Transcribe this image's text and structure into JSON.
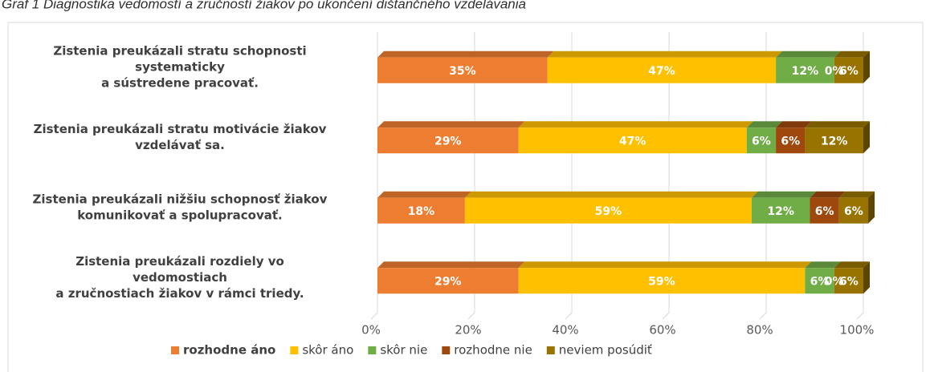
{
  "chart_data": {
    "type": "bar",
    "orientation": "horizontal",
    "stacked": true,
    "title": "Graf 1 Diagnostika vedomostí a zručností žiakov po ukončení dištančného vzdelávania",
    "categories": [
      [
        "Zistenia preukázali stratu schopnosti",
        "systematicky",
        "a sústredene pracovať."
      ],
      [
        "Zistenia  preukázali stratu motivácie žiakov",
        "vzdelávať sa."
      ],
      [
        "Zistenia preukázali nižšiu schopnosť žiakov",
        "komunikovať a spolupracovať."
      ],
      [
        "Zistenia  preukázali rozdiely vo",
        "vedomostiach",
        "a zručnostiach žiakov v rámci triedy."
      ]
    ],
    "series": [
      {
        "name": "rozhodne áno",
        "color": "#ED7D31",
        "values": [
          35,
          29,
          18,
          29
        ],
        "value_labels": [
          "35%",
          "29%",
          "18%",
          "29%"
        ]
      },
      {
        "name": "skôr áno",
        "color": "#FFC000",
        "values": [
          47,
          47,
          59,
          59
        ],
        "value_labels": [
          "47%",
          "47%",
          "59%",
          "59%"
        ]
      },
      {
        "name": "skôr nie",
        "color": "#70AD47",
        "values": [
          12,
          6,
          12,
          6
        ],
        "value_labels": [
          "12%",
          "6%",
          "12%",
          "6%"
        ]
      },
      {
        "name": "rozhodne nie",
        "color": "#9E480E",
        "values": [
          0,
          6,
          6,
          0
        ],
        "value_labels": [
          "0%",
          "6%",
          "6%",
          "0%"
        ]
      },
      {
        "name": "neviem posúdiť",
        "color": "#997300",
        "values": [
          6,
          12,
          6,
          6
        ],
        "value_labels": [
          "6%",
          "12%",
          "6%",
          "6%"
        ]
      }
    ],
    "xlim": [
      0,
      100
    ],
    "xticks": [
      {
        "value": 0,
        "label": "0%"
      },
      {
        "value": 20,
        "label": "20%"
      },
      {
        "value": 40,
        "label": "40%"
      },
      {
        "value": 60,
        "label": "60%"
      },
      {
        "value": 80,
        "label": "80%"
      },
      {
        "value": 100,
        "label": "100%"
      }
    ],
    "grid": true,
    "legend": "bottom"
  }
}
